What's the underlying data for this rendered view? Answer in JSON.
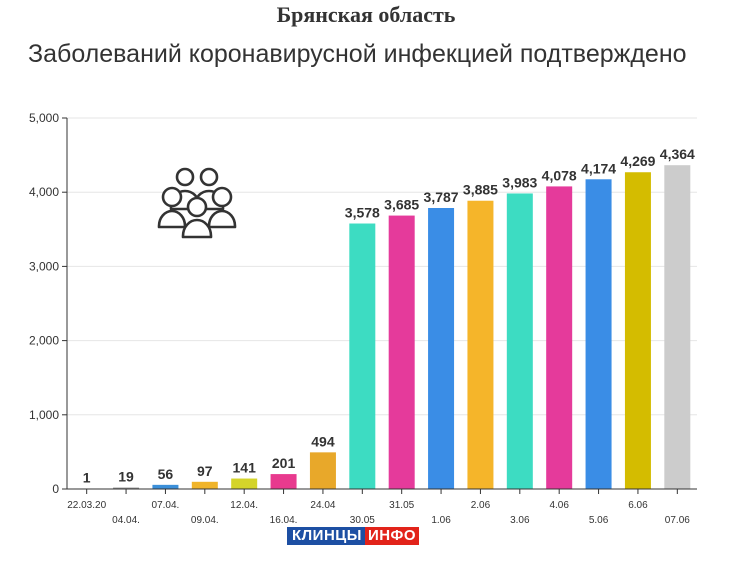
{
  "title": "Брянская область",
  "subtitle": "Заболеваний коронавирусной инфекцией подтверждено",
  "logo": {
    "part1": "КЛИНЦЫ",
    "part2": "ИНФО"
  },
  "icon": "people-group-icon",
  "chart_data": {
    "type": "bar",
    "title": "Заболеваний коронавирусной инфекцией подтверждено",
    "xlabel": "",
    "ylabel": "",
    "ylim": [
      0,
      5000
    ],
    "yticks": [
      0,
      1000,
      2000,
      3000,
      4000,
      5000
    ],
    "ytick_labels": [
      "0",
      "1,000",
      "2,000",
      "3,000",
      "4,000",
      "5,000"
    ],
    "grid": true,
    "legend": "none",
    "categories": [
      "22.03.20",
      "04.04.",
      "07.04.",
      "09.04.",
      "12.04.",
      "16.04.",
      "24.04",
      "30.05",
      "31.05",
      "1.06",
      "2.06",
      "3.06",
      "4.06",
      "5.06",
      "6.06",
      "07.06"
    ],
    "values": [
      1,
      19,
      56,
      97,
      141,
      201,
      494,
      3578,
      3685,
      3787,
      3885,
      3983,
      4078,
      4174,
      4269,
      4364
    ],
    "value_labels": [
      "1",
      "19",
      "56",
      "97",
      "141",
      "201",
      "494",
      "3,578",
      "3,685",
      "3,787",
      "3,885",
      "3,983",
      "4,078",
      "4,174",
      "4,269",
      "4,364"
    ],
    "colors": [
      "#e8e8e8",
      "#8c8c8c",
      "#3b8fd9",
      "#f0b429",
      "#d4d42a",
      "#e83a8e",
      "#e8a82a",
      "#3ddcc2",
      "#e53a9b",
      "#3a8de6",
      "#f5b52a",
      "#3ddcc2",
      "#e53a9b",
      "#3a8de6",
      "#d4bc00",
      "#cccccc"
    ]
  }
}
